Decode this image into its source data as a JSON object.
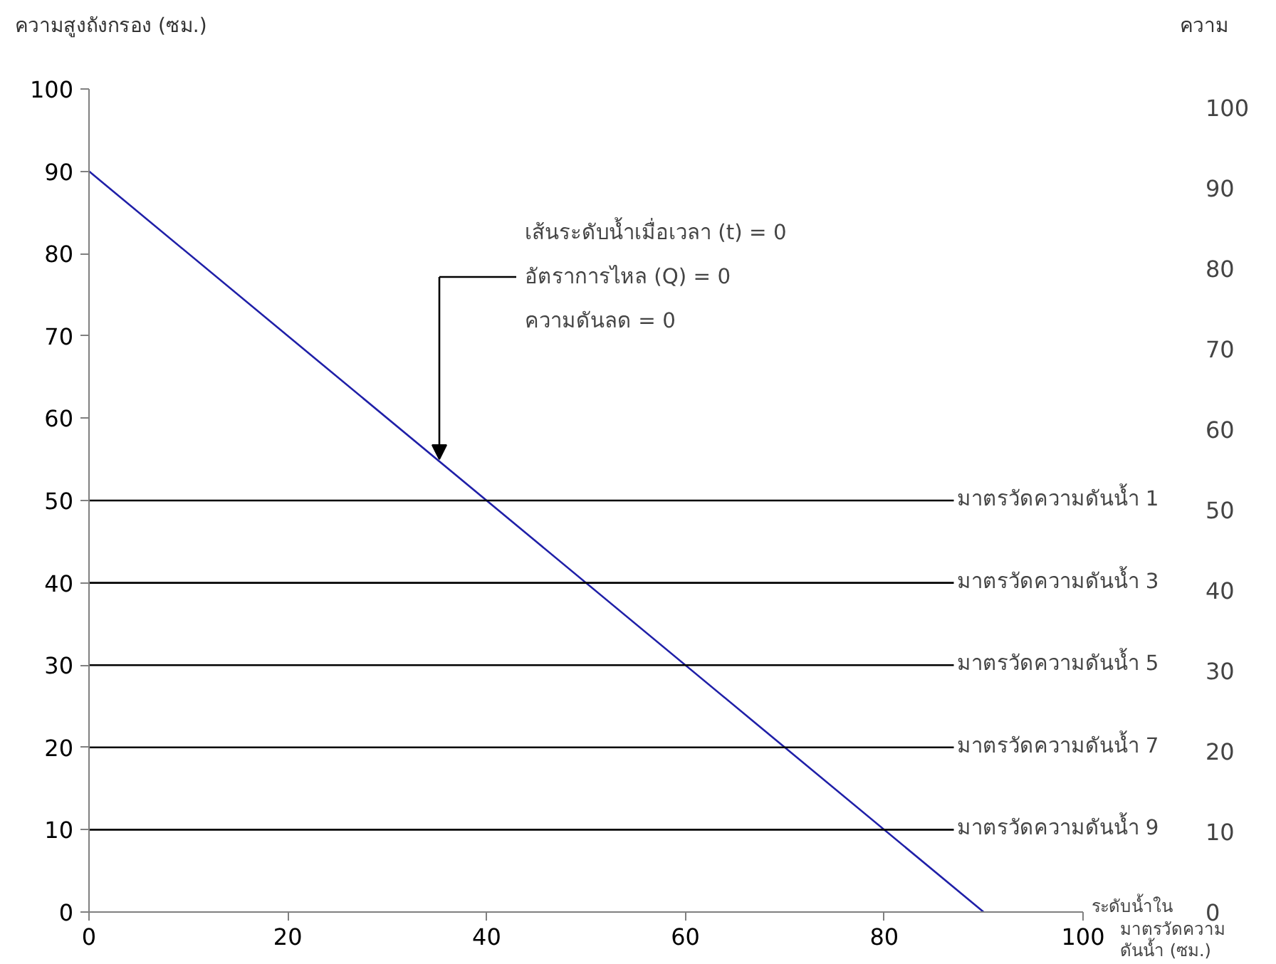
{
  "chart_data": {
    "type": "line",
    "ylabel": "ความสูงถังกรอง (ซม.)",
    "xlabel": "ระดับน้ำใน\nมาตรวัดความ\nดันน้ำ (ซม.)",
    "y2label": "ความ",
    "xlim": [
      0,
      100
    ],
    "xticks": [
      0,
      20,
      40,
      60,
      80,
      100
    ],
    "ylim": [
      0,
      100
    ],
    "yticks": [
      0,
      10,
      20,
      30,
      40,
      50,
      60,
      70,
      80,
      90,
      100
    ],
    "y2lim": [
      0,
      100
    ],
    "y2ticks": [
      0,
      10,
      20,
      30,
      40,
      50,
      60,
      70,
      80,
      90,
      100
    ],
    "grid": false,
    "legend": false,
    "marker": "none",
    "line_style": "solid",
    "series": [
      {
        "x": [
          0,
          90
        ],
        "values": [
          90,
          0
        ],
        "color": "#1f1fa8"
      },
      {
        "name": "มาตรวัดความดันน้ำ 1",
        "x": [
          0,
          87
        ],
        "values": [
          50,
          50
        ],
        "color": "#000000"
      },
      {
        "name": "มาตรวัดความดันน้ำ 3",
        "x": [
          0,
          87
        ],
        "values": [
          40,
          40
        ],
        "color": "#000000"
      },
      {
        "name": "มาตรวัดความดันน้ำ 5",
        "x": [
          0,
          87
        ],
        "values": [
          30,
          30
        ],
        "color": "#000000"
      },
      {
        "name": "มาตรวัดความดันน้ำ 7",
        "x": [
          0,
          87
        ],
        "values": [
          20,
          20
        ],
        "color": "#000000"
      },
      {
        "name": "มาตรวัดความดันน้ำ 9",
        "x": [
          0,
          87
        ],
        "values": [
          10,
          10
        ],
        "color": "#000000"
      }
    ],
    "annotations": [
      "เส้นระดับน้ำเมื่อเวลา (t) = 0\nอัตราการไหล (Q) = 0\nความดันลด  = 0"
    ]
  }
}
